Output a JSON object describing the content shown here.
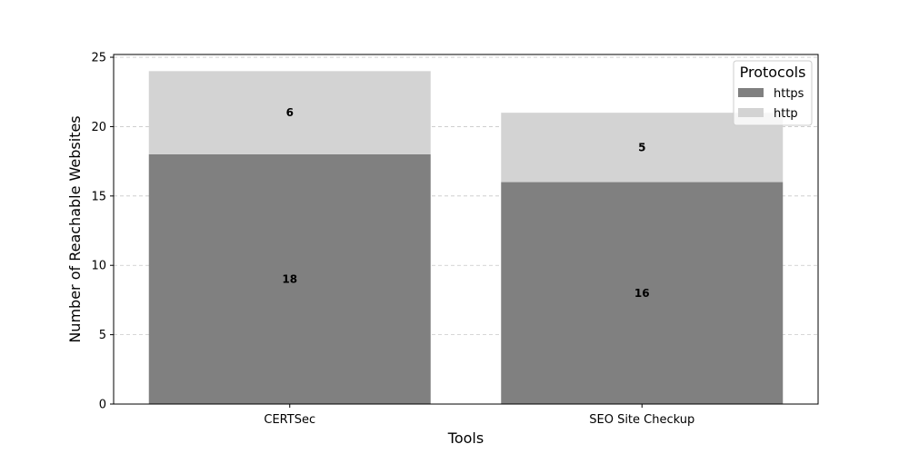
{
  "chart_data": {
    "type": "bar",
    "stacked": true,
    "categories": [
      "CERTSec",
      "SEO Site Checkup"
    ],
    "series": [
      {
        "name": "https",
        "values": [
          18,
          16
        ],
        "color": "#808080"
      },
      {
        "name": "http",
        "values": [
          6,
          5
        ],
        "color": "#d3d3d3"
      }
    ],
    "xlabel": "Tools",
    "ylabel": "Number of Reachable Websites",
    "ylim": [
      0,
      25.2
    ],
    "yticks": [
      0,
      5,
      10,
      15,
      20,
      25
    ],
    "grid": "horizontal dashed",
    "legend": {
      "title": "Protocols",
      "placement": "top-right"
    }
  }
}
